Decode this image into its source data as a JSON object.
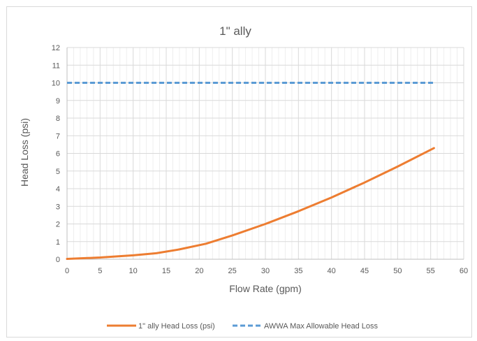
{
  "chart_data": {
    "type": "line",
    "title": "1\" ally",
    "xlabel": "Flow Rate (gpm)",
    "ylabel": "Head Loss (psi)",
    "xlim": [
      0,
      60
    ],
    "ylim": [
      0,
      12
    ],
    "x_ticks": [
      0,
      5,
      10,
      15,
      20,
      25,
      30,
      35,
      40,
      45,
      50,
      55,
      60
    ],
    "y_ticks": [
      0,
      1,
      2,
      3,
      4,
      5,
      6,
      7,
      8,
      9,
      10,
      11,
      12
    ],
    "grid": true,
    "legend_position": "bottom",
    "series": [
      {
        "name": "1\" ally Head Loss (psi)",
        "color": "#ED7D31",
        "style": "solid",
        "x": [
          0,
          5,
          10,
          13.5,
          17,
          21,
          25,
          30,
          35,
          40,
          45,
          50,
          55.5
        ],
        "y": [
          0.02,
          0.1,
          0.22,
          0.34,
          0.56,
          0.88,
          1.35,
          2.0,
          2.72,
          3.5,
          4.35,
          5.25,
          6.3
        ]
      },
      {
        "name": "AWWA Max Allowable Head Loss",
        "color": "#5B9BD5",
        "style": "dashed",
        "x": [
          0,
          55.5
        ],
        "y": [
          10,
          10
        ]
      }
    ]
  }
}
